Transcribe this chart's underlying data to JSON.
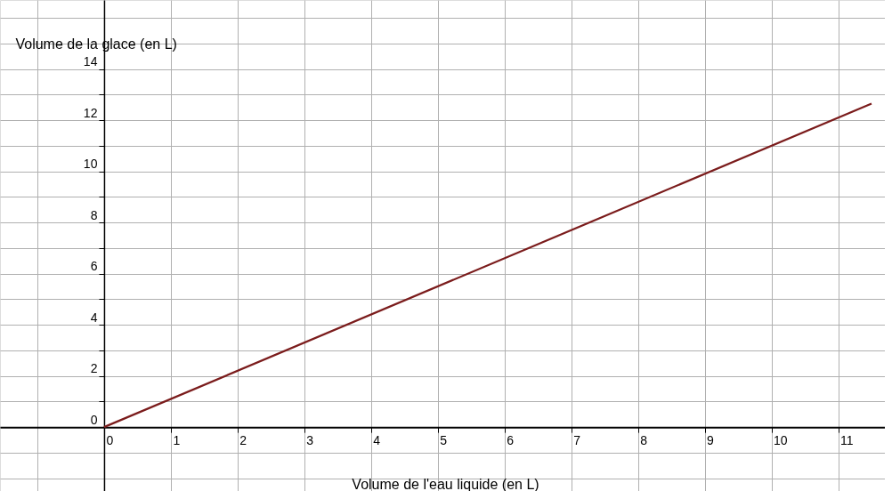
{
  "chart_data": {
    "type": "line",
    "xlabel": "Volume de l'eau liquide (en L)",
    "ylabel": "Volume de la glace (en L)",
    "x": [
      0,
      11.5
    ],
    "series": [
      {
        "color": "#7b1c1c",
        "values": [
          0,
          12.65
        ]
      }
    ],
    "xlim": [
      -1.56,
      11.7
    ],
    "ylim": [
      -2.5,
      16.7
    ],
    "xticks": [
      0,
      1,
      2,
      3,
      4,
      5,
      6,
      7,
      8,
      9,
      10,
      11
    ],
    "yticks": [
      0,
      {
        "value": 1,
        "label": null
      },
      2,
      {
        "value": 3,
        "label": null
      },
      4,
      {
        "value": 5,
        "label": null
      },
      6,
      {
        "value": 7,
        "label": null
      },
      8,
      {
        "value": 9,
        "label": null
      },
      10,
      {
        "value": 11,
        "label": null
      },
      12,
      {
        "value": 13,
        "label": null
      },
      14
    ],
    "grid": true,
    "marker": "none",
    "line_style": "solid"
  }
}
